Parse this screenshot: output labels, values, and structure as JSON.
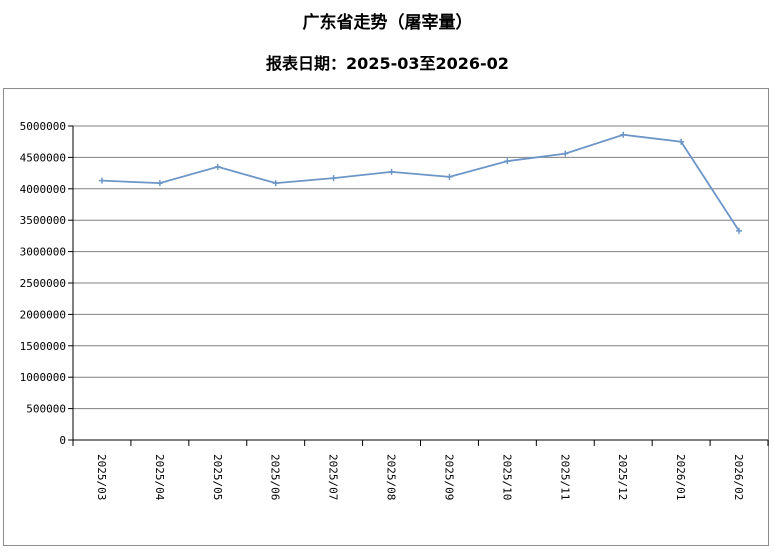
{
  "chart_data": {
    "type": "line",
    "title": "广东省走势（屠宰量）",
    "subtitle": "报表日期：2025-03至2026-02",
    "categories": [
      "2025/03",
      "2025/04",
      "2025/05",
      "2025/06",
      "2025/07",
      "2025/08",
      "2025/09",
      "2025/10",
      "2025/11",
      "2025/12",
      "2026/01",
      "2026/02"
    ],
    "series": [
      {
        "values": [
          4130000,
          4090000,
          4350000,
          4090000,
          4170000,
          4270000,
          4190000,
          4440000,
          4560000,
          4860000,
          4750000,
          3330000
        ]
      }
    ],
    "ylim": [
      0,
      5000000
    ],
    "yticks": [
      "0",
      "500000",
      "1000000",
      "1500000",
      "2000000",
      "2500000",
      "3000000",
      "3500000",
      "4000000",
      "4500000",
      "5000000"
    ],
    "grid": true,
    "line_color": "#6c96c8",
    "grid_color": "#808080"
  }
}
